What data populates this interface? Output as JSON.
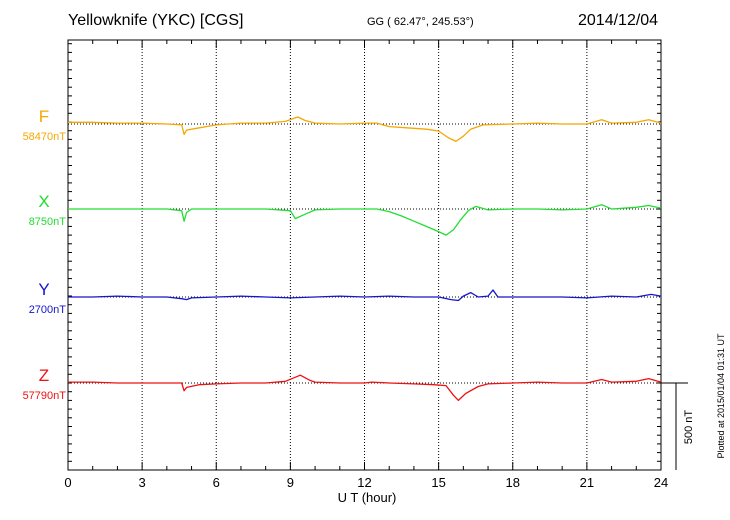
{
  "header": {
    "title": "Yellowknife (YKC)  [CGS]",
    "coordinates": "GG ( 62.47°, 245.53°)",
    "date": "2014/12/04"
  },
  "chart_data": {
    "type": "line",
    "xlabel": "U T (hour)",
    "xlim": [
      0,
      24
    ],
    "x_ticks": [
      "0",
      "3",
      "6",
      "9",
      "12",
      "15",
      "18",
      "21",
      "24"
    ],
    "grid": true,
    "scale_bar": {
      "label": "500 nT",
      "value_nT": 500
    },
    "plotted_note": "Plotted at 2015/01/04 01:31  UT",
    "series": [
      {
        "name": "F",
        "baseline_label": "58470nT",
        "color": "#f4a800",
        "x": [
          0,
          1,
          2,
          3,
          4,
          4.6,
          4.7,
          4.8,
          5.2,
          6,
          7,
          8,
          8.8,
          9.3,
          9.6,
          10,
          11,
          12,
          12.5,
          13,
          14,
          14.5,
          15,
          15.4,
          15.7,
          16,
          16.3,
          16.8,
          18,
          19,
          20,
          21,
          21.6,
          22,
          23,
          23.5,
          24
        ],
        "y": [
          10,
          10,
          5,
          5,
          0,
          -5,
          -60,
          -35,
          -25,
          -5,
          5,
          5,
          15,
          40,
          20,
          5,
          0,
          5,
          5,
          -15,
          -25,
          -30,
          -40,
          -80,
          -100,
          -70,
          -30,
          -5,
          0,
          5,
          0,
          0,
          25,
          5,
          10,
          25,
          5
        ]
      },
      {
        "name": "X",
        "baseline_label": "8750nT",
        "color": "#22dd33",
        "x": [
          0,
          1,
          2,
          3,
          4,
          4.6,
          4.7,
          4.8,
          5,
          6,
          7,
          8,
          9,
          9.2,
          9.6,
          10,
          11,
          12,
          12.5,
          13,
          13.5,
          14,
          14.5,
          15,
          15.3,
          15.6,
          15.9,
          16.2,
          16.5,
          17,
          18,
          19,
          20,
          21,
          21.6,
          22,
          23,
          23.5,
          24
        ],
        "y": [
          0,
          0,
          0,
          0,
          0,
          -10,
          -70,
          -20,
          0,
          0,
          0,
          0,
          -10,
          -55,
          -30,
          -5,
          0,
          0,
          0,
          -15,
          -40,
          -70,
          -100,
          -130,
          -150,
          -120,
          -60,
          -10,
          15,
          -5,
          0,
          0,
          -5,
          0,
          25,
          0,
          10,
          20,
          5
        ]
      },
      {
        "name": "Y",
        "baseline_label": "2700nT",
        "color": "#1515cc",
        "x": [
          0,
          1,
          2,
          3,
          4,
          4.6,
          4.8,
          5,
          6,
          7,
          8,
          9,
          10,
          11,
          12,
          13,
          14,
          15,
          15.5,
          15.8,
          16,
          16.3,
          16.6,
          17,
          17.2,
          17.4,
          18,
          19,
          20,
          21,
          22,
          23,
          23.6,
          24
        ],
        "y": [
          0,
          0,
          5,
          0,
          0,
          -10,
          -15,
          -5,
          0,
          5,
          0,
          -5,
          0,
          5,
          0,
          5,
          0,
          0,
          -15,
          -20,
          5,
          25,
          0,
          5,
          40,
          0,
          0,
          0,
          0,
          -5,
          5,
          0,
          15,
          5
        ]
      },
      {
        "name": "Z",
        "baseline_label": "57790nT",
        "color": "#ee1111",
        "x": [
          0,
          1,
          2,
          3,
          4,
          4.6,
          4.7,
          4.8,
          5.3,
          6,
          7,
          8,
          8.8,
          9.4,
          9.8,
          10,
          11,
          12,
          12.3,
          13,
          14,
          14.8,
          15.3,
          15.6,
          15.8,
          16.1,
          16.6,
          17,
          18,
          19,
          20,
          21,
          21.6,
          22,
          23,
          23.5,
          24
        ],
        "y": [
          5,
          5,
          0,
          0,
          0,
          0,
          -45,
          -25,
          -10,
          -5,
          0,
          0,
          10,
          45,
          15,
          5,
          0,
          0,
          5,
          0,
          -5,
          -10,
          -15,
          -70,
          -100,
          -60,
          -20,
          -5,
          0,
          5,
          0,
          0,
          20,
          5,
          10,
          25,
          5
        ]
      }
    ]
  }
}
